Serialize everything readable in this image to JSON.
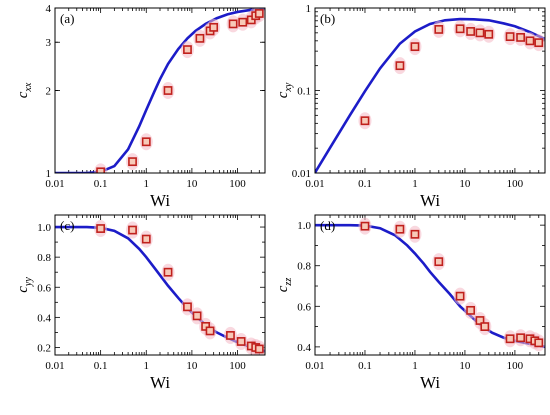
{
  "colors": {
    "line": "#1c1cc8",
    "marker_edge": "#c0201c",
    "marker_fill": "#f7c9b8",
    "error_glow": "#f4b8c4"
  },
  "chart_data": [
    {
      "panel": "(a)",
      "type": "scatter",
      "xlabel": "Wi",
      "ylabel_main": "c",
      "ylabel_sub": "xx",
      "xscale": "log",
      "yscale": "log",
      "xlim": [
        0.01,
        400
      ],
      "ylim": [
        1,
        4
      ],
      "xticks": [
        0.01,
        0.1,
        1,
        10,
        100
      ],
      "xtick_labels": [
        "0.01",
        "0.1",
        "1",
        "10",
        "100"
      ],
      "yticks": [
        1,
        2,
        3,
        4
      ],
      "ytick_labels": [
        "1",
        "2",
        "3",
        "4"
      ],
      "series": [
        {
          "type": "line",
          "x": [
            0.01,
            0.05,
            0.1,
            0.2,
            0.4,
            0.7,
            1,
            1.5,
            2,
            3,
            5,
            8,
            12,
            20,
            35,
            60,
            100,
            200,
            400
          ],
          "y": [
            1.0,
            1.0,
            1.01,
            1.06,
            1.22,
            1.48,
            1.7,
            1.98,
            2.2,
            2.5,
            2.83,
            3.1,
            3.3,
            3.5,
            3.67,
            3.79,
            3.87,
            3.94,
            3.97
          ]
        },
        {
          "type": "scatter",
          "x": [
            0.1,
            0.5,
            1,
            3,
            8,
            15,
            25,
            30,
            80,
            130,
            200,
            250,
            300
          ],
          "y": [
            1.01,
            1.1,
            1.3,
            2.0,
            2.82,
            3.1,
            3.3,
            3.4,
            3.5,
            3.55,
            3.62,
            3.75,
            3.82
          ]
        }
      ]
    },
    {
      "panel": "(b)",
      "type": "scatter",
      "xlabel": "Wi",
      "ylabel_main": "c",
      "ylabel_sub": "xy",
      "xscale": "log",
      "yscale": "log",
      "xlim": [
        0.01,
        400
      ],
      "ylim": [
        0.01,
        1
      ],
      "xticks": [
        0.01,
        0.1,
        1,
        10,
        100
      ],
      "xtick_labels": [
        "0.01",
        "0.1",
        "1",
        "10",
        "100"
      ],
      "yticks": [
        0.01,
        0.1,
        1
      ],
      "ytick_labels": [
        "0.01",
        "0.1",
        "1"
      ],
      "series": [
        {
          "type": "line",
          "x": [
            0.01,
            0.02,
            0.05,
            0.1,
            0.2,
            0.5,
            1,
            2,
            4,
            8,
            15,
            30,
            60,
            100,
            200,
            400
          ],
          "y": [
            0.0101,
            0.0202,
            0.0502,
            0.098,
            0.185,
            0.37,
            0.52,
            0.64,
            0.71,
            0.735,
            0.73,
            0.71,
            0.65,
            0.6,
            0.51,
            0.42
          ]
        },
        {
          "type": "scatter",
          "x": [
            0.1,
            0.5,
            1,
            3,
            8,
            13,
            20,
            30,
            80,
            130,
            200,
            300
          ],
          "y": [
            0.043,
            0.2,
            0.34,
            0.55,
            0.56,
            0.52,
            0.5,
            0.48,
            0.45,
            0.44,
            0.4,
            0.38
          ]
        }
      ]
    },
    {
      "panel": "(c)",
      "type": "scatter",
      "xlabel": "Wi",
      "ylabel_main": "c",
      "ylabel_sub": "yy",
      "xscale": "log",
      "yscale": "linear",
      "xlim": [
        0.01,
        400
      ],
      "ylim": [
        0.15,
        1.08
      ],
      "xticks": [
        0.01,
        0.1,
        1,
        10,
        100
      ],
      "xtick_labels": [
        "0.01",
        "0.1",
        "1",
        "10",
        "100"
      ],
      "yticks": [
        0.2,
        0.4,
        0.6,
        0.8,
        1.0
      ],
      "ytick_labels": [
        "0.2",
        "0.4",
        "0.6",
        "0.8",
        "1.0"
      ],
      "series": [
        {
          "type": "line",
          "x": [
            0.01,
            0.05,
            0.1,
            0.2,
            0.4,
            0.7,
            1,
            1.5,
            2,
            3,
            5,
            8,
            12,
            20,
            35,
            60,
            100,
            200,
            400
          ],
          "y": [
            1.0,
            1.0,
            0.995,
            0.975,
            0.925,
            0.855,
            0.8,
            0.73,
            0.68,
            0.61,
            0.53,
            0.46,
            0.41,
            0.35,
            0.3,
            0.265,
            0.235,
            0.2,
            0.175
          ]
        },
        {
          "type": "scatter",
          "x": [
            0.1,
            0.5,
            1,
            3,
            8,
            13,
            20,
            25,
            70,
            120,
            200,
            250,
            300
          ],
          "y": [
            0.99,
            0.98,
            0.92,
            0.7,
            0.47,
            0.41,
            0.34,
            0.31,
            0.28,
            0.24,
            0.21,
            0.2,
            0.19
          ]
        }
      ]
    },
    {
      "panel": "(d)",
      "type": "scatter",
      "xlabel": "Wi",
      "ylabel_main": "c",
      "ylabel_sub": "zz",
      "xscale": "log",
      "yscale": "linear",
      "xlim": [
        0.01,
        400
      ],
      "ylim": [
        0.36,
        1.05
      ],
      "xticks": [
        0.01,
        0.1,
        1,
        10,
        100
      ],
      "xtick_labels": [
        "0.01",
        "0.1",
        "1",
        "10",
        "100"
      ],
      "yticks": [
        0.4,
        0.6,
        0.8,
        1.0
      ],
      "ytick_labels": [
        "0.4",
        "0.6",
        "0.8",
        "1.0"
      ],
      "series": [
        {
          "type": "line",
          "x": [
            0.01,
            0.05,
            0.1,
            0.2,
            0.4,
            0.7,
            1,
            1.5,
            2,
            3,
            5,
            8,
            12,
            20,
            35,
            60,
            100,
            200,
            400
          ],
          "y": [
            1.0,
            1.0,
            0.998,
            0.985,
            0.95,
            0.9,
            0.86,
            0.81,
            0.77,
            0.72,
            0.66,
            0.6,
            0.56,
            0.51,
            0.47,
            0.445,
            0.43,
            0.415,
            0.4
          ]
        },
        {
          "type": "scatter",
          "x": [
            0.1,
            0.5,
            1,
            3,
            8,
            13,
            20,
            25,
            80,
            130,
            200,
            250,
            300
          ],
          "y": [
            0.995,
            0.98,
            0.955,
            0.82,
            0.65,
            0.58,
            0.53,
            0.5,
            0.44,
            0.445,
            0.44,
            0.43,
            0.42
          ]
        }
      ]
    }
  ]
}
